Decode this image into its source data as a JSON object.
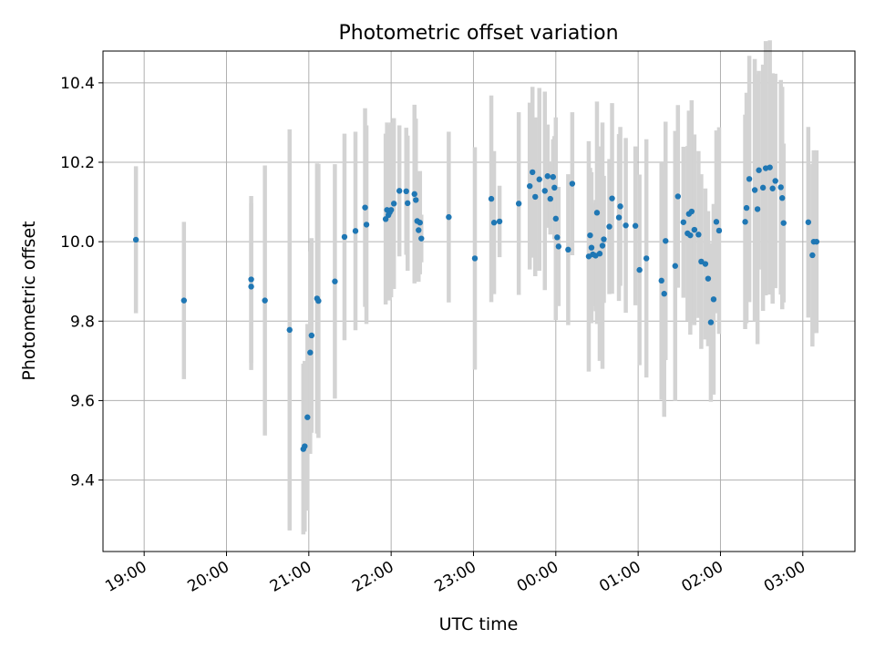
{
  "chart_data": {
    "type": "scatter",
    "title": "Photometric offset variation",
    "xlabel": "UTC time",
    "ylabel": "Photometric offset",
    "x_tick_labels": [
      "19:00",
      "20:00",
      "21:00",
      "22:00",
      "23:00",
      "00:00",
      "01:00",
      "02:00",
      "03:00"
    ],
    "y_tick_labels": [
      "9.4",
      "9.6",
      "9.8",
      "10.0",
      "10.2",
      "10.4"
    ],
    "y_ticks": [
      9.4,
      9.6,
      9.8,
      10.0,
      10.2,
      10.4
    ],
    "xlim": [
      "18:30",
      "03:38"
    ],
    "ylim": [
      9.22,
      10.48
    ],
    "grid": true,
    "colors": {
      "points": "#1f77b4",
      "error_bars": "#d3d3d3",
      "grid": "#b0b0b0"
    },
    "series": [
      {
        "x": [
          "18:54",
          "19:29",
          "20:18",
          "20:18",
          "20:28",
          "20:46",
          "20:56",
          "20:57",
          "20:59",
          "21:01",
          "21:02",
          "21:06",
          "21:07",
          "21:19",
          "21:26",
          "21:34",
          "21:41",
          "21:42",
          "21:56",
          "21:57",
          "21:58",
          "21:59",
          "22:00",
          "22:02",
          "22:06",
          "22:11",
          "22:12",
          "22:17",
          "22:18",
          "22:19",
          "22:20",
          "22:21",
          "22:22",
          "22:42",
          "23:01",
          "23:13",
          "23:15",
          "23:19",
          "23:33",
          "23:41",
          "23:43",
          "23:45",
          "23:48",
          "23:52",
          "23:54",
          "23:56",
          "23:58",
          "23:59",
          "00:00",
          "00:01",
          "00:02",
          "00:09",
          "00:12",
          "00:24",
          "00:25",
          "00:26",
          "00:27",
          "00:29",
          "00:30",
          "00:32",
          "00:34",
          "00:35",
          "00:39",
          "00:41",
          "00:46",
          "00:47",
          "00:51",
          "00:58",
          "01:01",
          "01:06",
          "01:17",
          "01:19",
          "01:20",
          "01:27",
          "01:29",
          "01:33",
          "01:36",
          "01:37",
          "01:38",
          "01:39",
          "01:41",
          "01:44",
          "01:46",
          "01:49",
          "01:51",
          "01:53",
          "01:55",
          "01:57",
          "01:59",
          "02:18",
          "02:19",
          "02:21",
          "02:25",
          "02:27",
          "02:28",
          "02:31",
          "02:33",
          "02:36",
          "02:38",
          "02:40",
          "02:44",
          "02:45",
          "02:46",
          "03:04",
          "03:07",
          "03:08",
          "03:10"
        ],
        "y": [
          10.005,
          9.852,
          9.905,
          9.887,
          9.852,
          9.778,
          9.478,
          9.485,
          9.558,
          9.721,
          9.764,
          9.857,
          9.851,
          9.9,
          10.012,
          10.027,
          10.086,
          10.043,
          10.057,
          10.08,
          10.067,
          10.074,
          10.08,
          10.096,
          10.128,
          10.127,
          10.097,
          10.12,
          10.105,
          10.052,
          10.029,
          10.048,
          10.008,
          10.062,
          9.958,
          10.108,
          10.048,
          10.051,
          10.096,
          10.14,
          10.175,
          10.113,
          10.157,
          10.128,
          10.165,
          10.108,
          10.163,
          10.136,
          10.058,
          10.011,
          9.988,
          9.98,
          10.146,
          9.963,
          10.016,
          9.985,
          9.968,
          9.965,
          10.073,
          9.97,
          9.99,
          10.006,
          10.038,
          10.109,
          10.061,
          10.089,
          10.041,
          10.04,
          9.929,
          9.958,
          9.902,
          9.869,
          10.002,
          9.939,
          10.114,
          10.049,
          10.021,
          10.07,
          10.016,
          10.076,
          10.03,
          10.018,
          9.95,
          9.944,
          9.907,
          9.797,
          9.855,
          10.05,
          10.028,
          10.05,
          10.085,
          10.158,
          10.13,
          10.082,
          10.18,
          10.136,
          10.185,
          10.187,
          10.134,
          10.153,
          10.137,
          10.11,
          10.047,
          10.049,
          9.966,
          10.0,
          10.0
        ],
        "yerr": [
          0.185,
          0.198,
          0.21,
          0.21,
          0.34,
          0.505,
          0.215,
          0.215,
          0.235,
          0.255,
          0.245,
          0.34,
          0.345,
          0.295,
          0.26,
          0.25,
          0.25,
          0.25,
          0.215,
          0.22,
          0.215,
          0.22,
          0.22,
          0.215,
          0.165,
          0.16,
          0.17,
          0.225,
          0.205,
          0.115,
          0.13,
          0.13,
          0.06,
          0.215,
          0.28,
          0.26,
          0.18,
          0.09,
          0.23,
          0.21,
          0.215,
          0.2,
          0.23,
          0.25,
          0.13,
          0.09,
          0.095,
          0.13,
          0.255,
          0.11,
          0.15,
          0.19,
          0.18,
          0.29,
          0.17,
          0.19,
          0.13,
          0.14,
          0.28,
          0.27,
          0.31,
          0.16,
          0.17,
          0.24,
          0.21,
          0.2,
          0.22,
          0.2,
          0.24,
          0.3,
          0.3,
          0.31,
          0.3,
          0.34,
          0.23,
          0.19,
          0.22,
          0.26,
          0.25,
          0.28,
          0.24,
          0.21,
          0.22,
          0.19,
          0.17,
          0.2,
          0.24,
          0.23,
          0.26,
          0.27,
          0.29,
          0.31,
          0.33,
          0.34,
          0.25,
          0.31,
          0.32,
          0.32,
          0.29,
          0.27,
          0.27,
          0.28,
          0.2,
          0.24,
          0.23,
          0.23,
          0.23
        ]
      }
    ]
  }
}
